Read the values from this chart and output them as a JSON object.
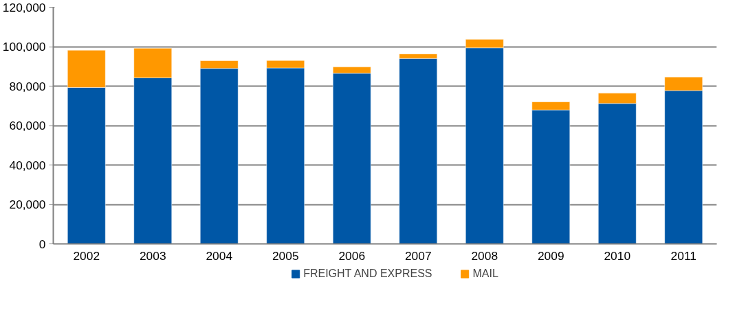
{
  "chart_data": {
    "type": "bar",
    "stacked": true,
    "categories": [
      "2002",
      "2003",
      "2004",
      "2005",
      "2006",
      "2007",
      "2008",
      "2009",
      "2010",
      "2011"
    ],
    "series": [
      {
        "name": "FREIGHT AND EXPRESS",
        "color": "#0057a6",
        "values": [
          79300,
          84200,
          89000,
          89200,
          86500,
          94000,
          99400,
          67900,
          71200,
          77700
        ]
      },
      {
        "name": "MAIL",
        "color": "#ff9800",
        "values": [
          18900,
          15000,
          3900,
          3800,
          3200,
          2300,
          4300,
          4100,
          5200,
          6900
        ]
      }
    ],
    "ylim": [
      0,
      120000
    ],
    "yticks": [
      {
        "value": 0,
        "label": "0"
      },
      {
        "value": 20000,
        "label": "20,000"
      },
      {
        "value": 40000,
        "label": "40,000"
      },
      {
        "value": 60000,
        "label": "60,000"
      },
      {
        "value": 80000,
        "label": "80,000"
      },
      {
        "value": 100000,
        "label": "100,000"
      },
      {
        "value": 120000,
        "label": "120,000"
      }
    ],
    "grid": "y",
    "legend": "bottom"
  }
}
